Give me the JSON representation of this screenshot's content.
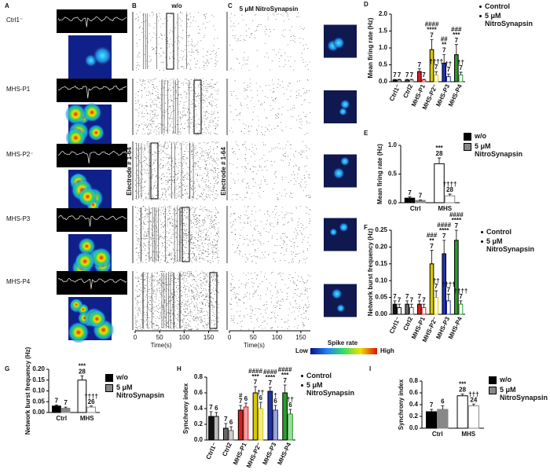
{
  "figure": {
    "A": {
      "label": "A",
      "rows": [
        "Ctrl1⁻",
        "MHS-P1",
        "MHS-P2⁻",
        "MHS-P3",
        "MHS-P4"
      ]
    },
    "B": {
      "label": "B",
      "title": "w/o"
    },
    "C": {
      "label": "C",
      "title": "5 μM NitroSynapsin"
    },
    "raster": {
      "ylabel": "Electrode # 1-64",
      "xlabel": "Time(s)",
      "xlim": [
        0,
        170
      ],
      "xticks": [
        0,
        50,
        100,
        150
      ]
    },
    "colorbar": {
      "title": "Spike rate",
      "low": "Low",
      "high": "High"
    }
  },
  "chart_data": [
    {
      "panel": "D",
      "type": "bar",
      "ylabel": "Mean firing rate (Hz)",
      "categories": [
        "Ctrl1⁻",
        "Ctrl2",
        "MHS-P1",
        "MHS-P2⁻",
        "MHS-P3",
        "MHS-P4"
      ],
      "ylim": [
        0,
        2
      ],
      "yticks": [
        {
          "value": 0,
          "label": "0.0"
        },
        0.5,
        {
          "value": 1,
          "label": "1.0"
        },
        1.5,
        {
          "value": 2,
          "label": "2.0"
        }
      ],
      "legend_marker": "dot",
      "series": [
        {
          "name": "Control",
          "color": "#000000",
          "fills": [
            "#111111",
            "#666666",
            "#d62020",
            "#d8c800",
            "#2233aa",
            "#2a9a2a"
          ],
          "strokes": [
            "#000000",
            "#000000",
            "#000000",
            "#000000",
            "#000000",
            "#000000"
          ],
          "values": [
            0.05,
            0.05,
            0.3,
            0.95,
            0.55,
            0.8
          ],
          "errors": [
            0.02,
            0.02,
            0.08,
            0.3,
            0.25,
            0.3
          ],
          "n": [
            7,
            7,
            7,
            7,
            7,
            7
          ],
          "annotations": [
            null,
            null,
            null,
            [
              "####",
              "****"
            ],
            [
              "##",
              "**"
            ],
            [
              "###",
              "***"
            ]
          ]
        },
        {
          "name": "5 μM NitroSynapsin",
          "color": "#000000",
          "fills": [
            "#ffffff",
            "#ffffff",
            "#ffffff",
            "#ffffff",
            "#ffffff",
            "#ffffff"
          ],
          "strokes": [
            "#111111",
            "#666666",
            "#d62020",
            "#d8c800",
            "#2233aa",
            "#2a9a2a"
          ],
          "values": [
            0.05,
            0.05,
            0.05,
            0.2,
            0.15,
            0.2
          ],
          "errors": [
            0.02,
            0.02,
            0.02,
            0.1,
            0.08,
            0.08
          ],
          "n": [
            7,
            7,
            7,
            7,
            7,
            7
          ],
          "annotations": [
            null,
            null,
            null,
            [
              "††††"
            ],
            [
              "††"
            ],
            [
              "††"
            ]
          ]
        }
      ]
    },
    {
      "panel": "E",
      "type": "bar",
      "ylabel": "Mean firing rate (Hz)",
      "categories": [
        "Ctrl",
        "MHS"
      ],
      "ylim": [
        0,
        1
      ],
      "yticks": [
        {
          "value": 0,
          "label": "0.0"
        },
        0.5,
        {
          "value": 1,
          "label": "1.0"
        }
      ],
      "legend_marker": "square",
      "series": [
        {
          "name": "w/o",
          "color": "#000000",
          "fills": [
            "#000000",
            "#ffffff"
          ],
          "strokes": [
            "#000000",
            "#000000"
          ],
          "values": [
            0.08,
            0.68
          ],
          "errors": [
            0.02,
            0.1
          ],
          "n": [
            7,
            28
          ],
          "annotations": [
            null,
            [
              "***"
            ]
          ]
        },
        {
          "name": "5 μM NitroSynapsin",
          "color": "#888888",
          "fills": [
            "#888888",
            "#ffffff"
          ],
          "strokes": [
            "#888888",
            "#888888"
          ],
          "values": [
            0.04,
            0.12
          ],
          "errors": [
            0.01,
            0.03
          ],
          "n": [
            7,
            28
          ],
          "annotations": [
            null,
            [
              "††††"
            ]
          ]
        }
      ]
    },
    {
      "panel": "F",
      "type": "bar",
      "ylabel": "Network burst frequency (Hz)",
      "categories": [
        "Ctrl1⁻",
        "Ctrl2",
        "MHS-P1",
        "MHS-P2⁻",
        "MHS-P3",
        "MHS-P4"
      ],
      "ylim": [
        0,
        0.25
      ],
      "yticks": [
        {
          "value": 0,
          "label": "0.00"
        },
        0.05,
        {
          "value": 0.1,
          "label": "0.10"
        },
        0.15,
        {
          "value": 0.2,
          "label": "0.20"
        },
        0.25
      ],
      "legend_marker": "dot",
      "series": [
        {
          "name": "Control",
          "color": "#000000",
          "fills": [
            "#111111",
            "#666666",
            "#d62020",
            "#d8c800",
            "#2233aa",
            "#2a9a2a"
          ],
          "strokes": [
            "#000000",
            "#000000",
            "#000000",
            "#000000",
            "#000000",
            "#000000"
          ],
          "values": [
            0.03,
            0.03,
            0.03,
            0.15,
            0.18,
            0.22
          ],
          "errors": [
            0.01,
            0.01,
            0.01,
            0.04,
            0.04,
            0.03
          ],
          "n": [
            7,
            7,
            7,
            7,
            7,
            7
          ],
          "annotations": [
            null,
            null,
            null,
            [
              "###",
              "**"
            ],
            [
              "####",
              "****"
            ],
            [
              "####",
              "****"
            ]
          ]
        },
        {
          "name": "5 μM NitroSynapsin",
          "color": "#000000",
          "fills": [
            "#ffffff",
            "#ffffff",
            "#ffffff",
            "#ffffff",
            "#ffffff",
            "#ffffff"
          ],
          "strokes": [
            "#111111",
            "#666666",
            "#d62020",
            "#d8c800",
            "#2233aa",
            "#2a9a2a"
          ],
          "values": [
            0.02,
            0.02,
            0.02,
            0.05,
            0.04,
            0.03
          ],
          "errors": [
            0.01,
            0.01,
            0.01,
            0.02,
            0.02,
            0.01
          ],
          "n": [
            7,
            7,
            7,
            7,
            7,
            7
          ],
          "annotations": [
            null,
            null,
            null,
            [
              "††"
            ],
            [
              "††††"
            ],
            [
              "††††"
            ]
          ]
        }
      ]
    },
    {
      "panel": "G",
      "type": "bar",
      "ylabel": "Network burst frequency (Hz)",
      "categories": [
        "Ctrl",
        "MHS"
      ],
      "ylim": [
        0,
        0.2
      ],
      "yticks": [
        {
          "value": 0,
          "label": "0.00"
        },
        0.05,
        {
          "value": 0.1,
          "label": "0.10"
        },
        0.15,
        {
          "value": 0.2,
          "label": "0.20"
        }
      ],
      "legend_marker": "square",
      "series": [
        {
          "name": "w/o",
          "color": "#000000",
          "fills": [
            "#000000",
            "#ffffff"
          ],
          "strokes": [
            "#000000",
            "#000000"
          ],
          "values": [
            0.03,
            0.15
          ],
          "errors": [
            0.005,
            0.02
          ],
          "n": [
            7,
            28
          ],
          "annotations": [
            null,
            [
              "***"
            ]
          ]
        },
        {
          "name": "5 μM NitroSynapsin",
          "color": "#888888",
          "fills": [
            "#888888",
            "#ffffff"
          ],
          "strokes": [
            "#888888",
            "#888888"
          ],
          "values": [
            0.02,
            0.025
          ],
          "errors": [
            0.005,
            0.005
          ],
          "n": [
            7,
            26
          ],
          "annotations": [
            null,
            [
              "††††"
            ]
          ]
        }
      ]
    },
    {
      "panel": "H",
      "type": "bar",
      "ylabel": "Synchrony index",
      "categories": [
        "Ctrl1⁻",
        "Ctrl2",
        "MHS-P1",
        "MHS-P2⁻",
        "MHS-P3",
        "MHS-P4"
      ],
      "ylim": [
        0,
        0.8
      ],
      "yticks": [
        {
          "value": 0,
          "label": "0.0"
        },
        0.2,
        0.4,
        0.6,
        0.8
      ],
      "legend_marker": "dot",
      "series": [
        {
          "name": "Control",
          "color": "#000000",
          "fills": [
            "#111111",
            "#666666",
            "#d62020",
            "#d8c800",
            "#2233aa",
            "#2a9a2a"
          ],
          "strokes": [
            "#000000",
            "#000000",
            "#000000",
            "#000000",
            "#000000",
            "#000000"
          ],
          "values": [
            0.3,
            0.15,
            0.38,
            0.6,
            0.62,
            0.6
          ],
          "errors": [
            0.06,
            0.06,
            0.06,
            0.08,
            0.05,
            0.1
          ],
          "n": [
            7,
            7,
            7,
            7,
            7,
            7
          ],
          "annotations": [
            null,
            null,
            [
              "#"
            ],
            [
              "####",
              "***"
            ],
            [
              "####",
              "****"
            ],
            [
              "####",
              "***"
            ]
          ]
        },
        {
          "name": "5 μM NitroSynapsin",
          "color": "#000000",
          "fills": [
            "#bbbbbb",
            "#cccccc",
            "#f0a0a0",
            "#f0ea90",
            "#9aa4dd",
            "#a0d8a0"
          ],
          "strokes": [
            "#111111",
            "#666666",
            "#d62020",
            "#d8c800",
            "#2233aa",
            "#2a9a2a"
          ],
          "values": [
            0.3,
            0.12,
            0.42,
            0.4,
            0.38,
            0.33
          ],
          "errors": [
            0.05,
            0.05,
            0.05,
            0.08,
            0.06,
            0.06
          ],
          "n": [
            6,
            6,
            6,
            6,
            6,
            6
          ],
          "annotations": [
            null,
            null,
            null,
            [
              "††"
            ],
            [
              "†"
            ],
            [
              "††"
            ]
          ]
        }
      ]
    },
    {
      "panel": "I",
      "type": "bar",
      "ylabel": "Synchrony index",
      "categories": [
        "Ctrl",
        "MHS"
      ],
      "ylim": [
        0,
        0.8
      ],
      "yticks": [
        {
          "value": 0,
          "label": "0.0"
        },
        0.2,
        0.4,
        0.6,
        0.8
      ],
      "legend_marker": "square",
      "series": [
        {
          "name": "w/o",
          "color": "#000000",
          "fills": [
            "#000000",
            "#ffffff"
          ],
          "strokes": [
            "#000000",
            "#000000"
          ],
          "values": [
            0.28,
            0.55
          ],
          "errors": [
            0.04,
            0.03
          ],
          "n": [
            7,
            28
          ],
          "annotations": [
            null,
            [
              "***"
            ]
          ]
        },
        {
          "name": "5 μM NitroSynapsin",
          "color": "#888888",
          "fills": [
            "#888888",
            "#ffffff"
          ],
          "strokes": [
            "#888888",
            "#888888"
          ],
          "values": [
            0.32,
            0.38
          ],
          "errors": [
            0.06,
            0.03
          ],
          "n": [
            6,
            24
          ],
          "annotations": [
            null,
            [
              "†††"
            ]
          ]
        }
      ]
    }
  ]
}
